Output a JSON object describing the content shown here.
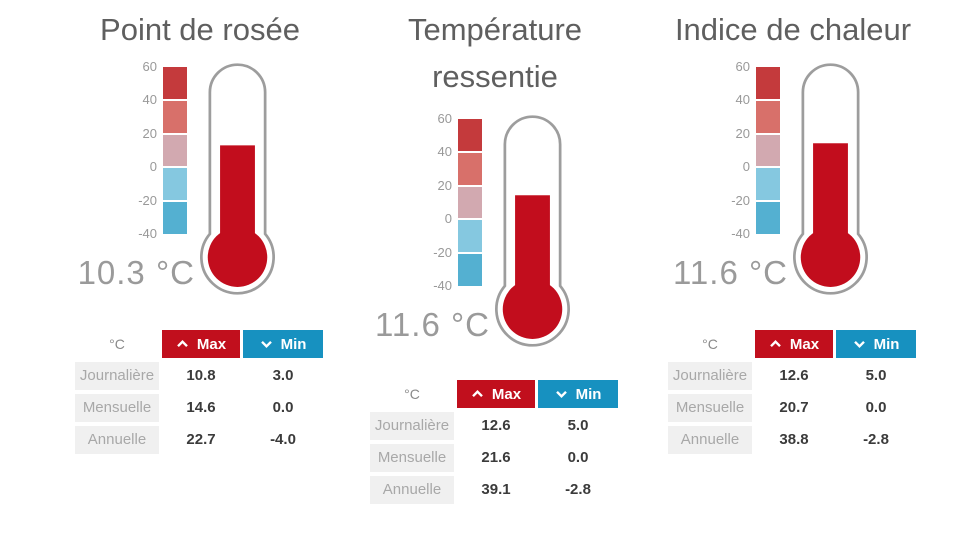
{
  "scale": {
    "tick_labels": [
      "60",
      "40",
      "20",
      "0",
      "-20",
      "-40"
    ],
    "segment_colors": [
      "#c43a3c",
      "#d8706a",
      "#d2a9b0",
      "#85c8e0",
      "#54b0d1"
    ]
  },
  "colors": {
    "max_button": "#c10f1d",
    "min_button": "#1791c0",
    "thermo_fill": "#c20d1d",
    "thermo_outline": "#9d9d9d",
    "title_text": "#5f5f5f",
    "reading_text": "#9a9a9a",
    "tick_text": "#999999",
    "row_label_bg": "#f0f0f0",
    "row_label_text": "#a8a8a8",
    "value_text": "#3b3b3b"
  },
  "table": {
    "unit_header": "°C",
    "max_label": "Max",
    "min_label": "Min",
    "max_icon": "chevron-up-icon",
    "min_icon": "chevron-down-icon"
  },
  "panels": [
    {
      "title": "Point de rosée",
      "title_line2": "",
      "reading": "10.3 °C",
      "reading_value": 10.3,
      "rows": [
        {
          "label": "Journalière",
          "max": "10.8",
          "min": "3.0"
        },
        {
          "label": "Mensuelle",
          "max": "14.6",
          "min": "0.0"
        },
        {
          "label": "Annuelle",
          "max": "22.7",
          "min": "-4.0"
        }
      ]
    },
    {
      "title": "Température",
      "title_line2": "ressentie",
      "reading": "11.6 °C",
      "reading_value": 11.6,
      "rows": [
        {
          "label": "Journalière",
          "max": "12.6",
          "min": "5.0"
        },
        {
          "label": "Mensuelle",
          "max": "21.6",
          "min": "0.0"
        },
        {
          "label": "Annuelle",
          "max": "39.1",
          "min": "-2.8"
        }
      ]
    },
    {
      "title": "Indice de chaleur",
      "title_line2": "",
      "reading": "11.6 °C",
      "reading_value": 11.6,
      "rows": [
        {
          "label": "Journalière",
          "max": "12.6",
          "min": "5.0"
        },
        {
          "label": "Mensuelle",
          "max": "20.7",
          "min": "0.0"
        },
        {
          "label": "Annuelle",
          "max": "38.8",
          "min": "-2.8"
        }
      ]
    }
  ]
}
